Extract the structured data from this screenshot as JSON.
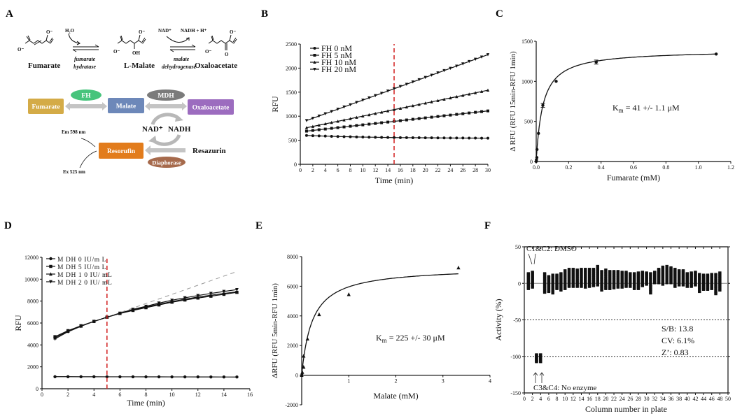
{
  "panel_labels": {
    "a": "A",
    "b": "B",
    "c": "C",
    "d": "D",
    "e": "E",
    "f": "F"
  },
  "panel_a": {
    "reaction": {
      "fumarate": "Fumarate",
      "l_malate": "L-Malate",
      "oxaloacetate": "Oxaloacetate",
      "water": "H₂O",
      "enzyme1_line1": "fumarate",
      "enzyme1_line2": "hydratase",
      "nad": "NAD⁺",
      "nadh": "NADH + H⁺",
      "enzyme2_line1": "malate",
      "enzyme2_line2": "dehydrogenase",
      "o_minus": "O⁻",
      "oh": "OH",
      "o": "O"
    },
    "scheme": {
      "fumarate": "Fumarate",
      "malate": "Malate",
      "oxaloacetate": "Oxaloacetate",
      "fh": "FH",
      "mdh": "MDH",
      "nad": "NAD⁺",
      "nadh": "NADH",
      "resorufin": "Resorufin",
      "resazurin": "Resazurin",
      "diaphorase": "Diaphorase",
      "em": "Em 598 nm",
      "ex": "Ex 525 nm"
    },
    "colors": {
      "fumarate": "#d4ab47",
      "malate": "#6d88b9",
      "oxaloacetate": "#9c6cbf",
      "fh": "#47c47c",
      "mdh": "#7b7b7b",
      "resorufin": "#e27c1c",
      "diaphorase": "#a66a4c",
      "arrow": "#c4c4c4"
    }
  },
  "chart_data": [
    {
      "id": "B",
      "type": "line",
      "title": "",
      "xlabel": "Time (min)",
      "ylabel": "RFU",
      "xlim": [
        0,
        30
      ],
      "ylim": [
        0,
        2500
      ],
      "xticks": [
        0,
        2,
        4,
        6,
        8,
        10,
        12,
        14,
        16,
        18,
        20,
        22,
        24,
        26,
        28,
        30
      ],
      "xtick_labels": [
        "0",
        "2",
        "4",
        "6",
        "8",
        "10",
        "12",
        "14",
        "16",
        "18",
        "20",
        "22",
        "24",
        "26",
        "28",
        "30"
      ],
      "yticks": [
        0,
        500,
        1000,
        1500,
        2000,
        2500
      ],
      "ytick_labels": [
        "0",
        "500",
        "1000",
        "1500",
        "2000",
        "2500"
      ],
      "vline": 15,
      "vline_color": "#d42a2a",
      "legend": "top-left",
      "x": [
        1,
        2,
        3,
        4,
        5,
        6,
        7,
        8,
        9,
        10,
        11,
        12,
        13,
        14,
        15,
        16,
        17,
        18,
        19,
        20,
        21,
        22,
        23,
        24,
        25,
        26,
        27,
        28,
        29,
        30
      ],
      "series": [
        {
          "name": "FH 0 nM",
          "marker": "circle",
          "values": [
            600,
            595,
            590,
            586,
            582,
            578,
            575,
            572,
            569,
            566,
            564,
            562,
            560,
            558,
            556,
            555,
            554,
            553,
            552,
            551,
            550,
            549,
            548,
            547,
            546,
            546,
            545,
            545,
            544,
            544
          ]
        },
        {
          "name": "FH 5 nM",
          "marker": "square",
          "values": [
            690,
            704,
            719,
            733,
            748,
            762,
            777,
            791,
            806,
            820,
            835,
            849,
            864,
            878,
            893,
            907,
            922,
            936,
            951,
            965,
            980,
            994,
            1009,
            1023,
            1038,
            1052,
            1067,
            1081,
            1096,
            1110
          ]
        },
        {
          "name": "FH 10 nM",
          "marker": "triangle-up",
          "values": [
            760,
            787,
            814,
            841,
            868,
            894,
            921,
            948,
            975,
            1002,
            1029,
            1056,
            1083,
            1110,
            1137,
            1163,
            1190,
            1217,
            1244,
            1271,
            1298,
            1325,
            1352,
            1379,
            1406,
            1432,
            1459,
            1486,
            1513,
            1540
          ]
        },
        {
          "name": "FH 20 nM",
          "marker": "triangle-down",
          "values": [
            910,
            957,
            1004,
            1052,
            1099,
            1146,
            1193,
            1240,
            1288,
            1335,
            1382,
            1429,
            1477,
            1524,
            1571,
            1618,
            1665,
            1713,
            1760,
            1807,
            1854,
            1902,
            1949,
            1996,
            2043,
            2090,
            2138,
            2185,
            2232,
            2280
          ]
        }
      ]
    },
    {
      "id": "C",
      "type": "scatter",
      "title": "",
      "xlabel": "Fumarate (mM)",
      "ylabel": "Δ RFU (RFU 15min-RFU 1min)",
      "xlim": [
        0,
        1.2
      ],
      "ylim": [
        0,
        1500
      ],
      "xticks": [
        0,
        0.2,
        0.4,
        0.6,
        0.8,
        1.0,
        1.2
      ],
      "xtick_labels": [
        "0.0",
        "0.2",
        "0.4",
        "0.6",
        "0.8",
        "1.0",
        "1.2"
      ],
      "yticks": [
        0,
        500,
        1000,
        1500
      ],
      "ytick_labels": [
        "0",
        "500",
        "1000",
        "1500"
      ],
      "points": [
        [
          0,
          0
        ],
        [
          0.0014,
          20
        ],
        [
          0.004,
          50
        ],
        [
          0.005,
          150
        ],
        [
          0.014,
          350
        ],
        [
          0.041,
          700
        ],
        [
          0.123,
          1000
        ],
        [
          0.37,
          1240
        ],
        [
          1.11,
          1340
        ]
      ],
      "fit": {
        "model": "michaelis-menten",
        "vmax": 1390,
        "km": 0.041,
        "xmax": 1.11
      },
      "annotation": {
        "k": "K",
        "sub": "m",
        "rest": " = 41 +/- 1.1  μM"
      }
    },
    {
      "id": "D",
      "type": "line",
      "title": "",
      "xlabel": "Time (min)",
      "ylabel": "RFU",
      "xlim": [
        0,
        16
      ],
      "ylim": [
        0,
        12000
      ],
      "xticks": [
        0,
        2,
        4,
        6,
        8,
        10,
        12,
        14,
        16
      ],
      "xtick_labels": [
        "0",
        "2",
        "4",
        "6",
        "8",
        "10",
        "12",
        "14",
        "16"
      ],
      "yticks": [
        0,
        2000,
        4000,
        6000,
        8000,
        10000,
        12000
      ],
      "ytick_labels": [
        "0",
        "2000",
        "4000",
        "6000",
        "8000",
        "10000",
        "12000"
      ],
      "vline": 5,
      "vline_color": "#d42a2a",
      "legend": "top-left",
      "trend_line": {
        "from": [
          5,
          6530
        ],
        "to": [
          15,
          10700
        ],
        "color": "#999999"
      },
      "x": [
        1,
        2,
        3,
        4,
        5,
        6,
        7,
        8,
        9,
        10,
        11,
        12,
        13,
        14,
        15
      ],
      "series": [
        {
          "name": "M DH  0 IU/m L",
          "marker": "circle",
          "values": [
            1100,
            1100,
            1095,
            1095,
            1090,
            1090,
            1088,
            1085,
            1085,
            1082,
            1080,
            1078,
            1075,
            1072,
            1070
          ]
        },
        {
          "name": "M DH  5  IU/m L",
          "marker": "square",
          "values": [
            4750,
            5300,
            5750,
            6150,
            6530,
            6870,
            7150,
            7400,
            7650,
            7900,
            8100,
            8280,
            8450,
            8620,
            8800
          ]
        },
        {
          "name": "M DH  1 0  IU/ mL",
          "marker": "triangle-up",
          "values": [
            4650,
            5250,
            5720,
            6150,
            6530,
            6880,
            7200,
            7460,
            7720,
            7960,
            8180,
            8370,
            8540,
            8700,
            8850
          ]
        },
        {
          "name": "M DH  2 0  IU/ mL",
          "marker": "triangle-down",
          "values": [
            4550,
            5200,
            5700,
            6150,
            6530,
            6900,
            7250,
            7530,
            7820,
            8080,
            8300,
            8510,
            8700,
            8880,
            9050
          ]
        }
      ]
    },
    {
      "id": "E",
      "type": "scatter",
      "title": "",
      "xlabel": "Malate (mM)",
      "ylabel": "ΔRFU (RFU 5min-RFU 1min)",
      "xlim": [
        0,
        4
      ],
      "ylim": [
        -2000,
        8000
      ],
      "xticks": [
        1,
        2,
        3,
        4
      ],
      "xtick_labels": [
        "1",
        "2",
        "3",
        "4"
      ],
      "yticks": [
        -2000,
        0,
        2000,
        4000,
        6000,
        8000
      ],
      "ytick_labels": [
        "-2000",
        "0",
        "2000",
        "4000",
        "6000",
        "8000"
      ],
      "points": [
        [
          0,
          0
        ],
        [
          0.0045,
          100
        ],
        [
          0.0137,
          200
        ],
        [
          0.041,
          550
        ],
        [
          0.041,
          1300
        ],
        [
          0.123,
          2450
        ],
        [
          0.37,
          4100
        ],
        [
          1.0,
          5450
        ],
        [
          3.33,
          7250
        ]
      ],
      "fit": {
        "model": "michaelis-menten",
        "vmax": 7300,
        "km": 0.225,
        "xmax": 3.33
      },
      "annotation": {
        "k": "K",
        "sub": "m",
        "rest": " = 225 +/- 30  μM"
      }
    },
    {
      "id": "F",
      "type": "scatter",
      "title": "",
      "xlabel": "Column number in plate",
      "ylabel": "Activity (%)",
      "xlim": [
        0,
        50
      ],
      "ylim": [
        -150,
        50
      ],
      "xticks": [
        0,
        2,
        4,
        6,
        8,
        10,
        12,
        14,
        16,
        18,
        20,
        22,
        24,
        26,
        28,
        30,
        32,
        34,
        36,
        38,
        40,
        42,
        44,
        46,
        48,
        50
      ],
      "xtick_labels": [
        "0",
        "2",
        "4",
        "6",
        "8",
        "10",
        "12",
        "14",
        "16",
        "18",
        "20",
        "22",
        "24",
        "26",
        "28",
        "30",
        "32",
        "34",
        "36",
        "38",
        "40",
        "42",
        "44",
        "46",
        "48",
        "50"
      ],
      "yticks": [
        -150,
        -100,
        -50,
        0,
        50
      ],
      "ytick_labels": [
        "-150",
        "-100",
        "-50",
        "0",
        "50"
      ],
      "hlines": [
        {
          "y": 0,
          "style": "solid"
        },
        {
          "y": -50,
          "style": "dotted"
        },
        {
          "y": -100,
          "style": "dotted"
        }
      ],
      "column_ranges": [
        [
          1,
          -8,
          14
        ],
        [
          2,
          -6,
          16
        ],
        [
          3,
          -108,
          -97
        ],
        [
          4,
          -108,
          -97
        ],
        [
          5,
          -13,
          14
        ],
        [
          6,
          -12,
          10
        ],
        [
          7,
          -14,
          12
        ],
        [
          8,
          -8,
          12
        ],
        [
          9,
          -10,
          14
        ],
        [
          10,
          -8,
          18
        ],
        [
          11,
          -5,
          20
        ],
        [
          12,
          -5,
          20
        ],
        [
          13,
          -5,
          19
        ],
        [
          14,
          -5,
          20
        ],
        [
          15,
          -6,
          20
        ],
        [
          16,
          -5,
          20
        ],
        [
          17,
          -4,
          20
        ],
        [
          18,
          -3,
          24
        ],
        [
          19,
          -10,
          17
        ],
        [
          20,
          -8,
          19
        ],
        [
          21,
          -8,
          17
        ],
        [
          22,
          -7,
          17
        ],
        [
          23,
          -6,
          17
        ],
        [
          24,
          -6,
          16
        ],
        [
          25,
          -5,
          16
        ],
        [
          26,
          -5,
          14
        ],
        [
          27,
          -8,
          14
        ],
        [
          28,
          -8,
          15
        ],
        [
          29,
          -4,
          16
        ],
        [
          30,
          -2,
          15
        ],
        [
          31,
          -14,
          14
        ],
        [
          32,
          0,
          16
        ],
        [
          33,
          0,
          20
        ],
        [
          34,
          -2,
          23
        ],
        [
          35,
          0,
          24
        ],
        [
          36,
          0,
          22
        ],
        [
          37,
          -5,
          20
        ],
        [
          38,
          -3,
          18
        ],
        [
          39,
          -3,
          18
        ],
        [
          40,
          -5,
          14
        ],
        [
          41,
          -5,
          15
        ],
        [
          42,
          -3,
          16
        ],
        [
          43,
          -12,
          13
        ],
        [
          44,
          -9,
          12
        ],
        [
          45,
          -9,
          12
        ],
        [
          46,
          -8,
          13
        ],
        [
          47,
          -15,
          13
        ],
        [
          48,
          -10,
          15
        ]
      ],
      "annotations": {
        "dmso": "C1&C2: DMSO",
        "no_enzyme": "C3&C4: No enzyme",
        "sb": "S/B: 13.8",
        "cv": "CV: 6.1%",
        "z": "Z’: 0.83"
      }
    }
  ]
}
